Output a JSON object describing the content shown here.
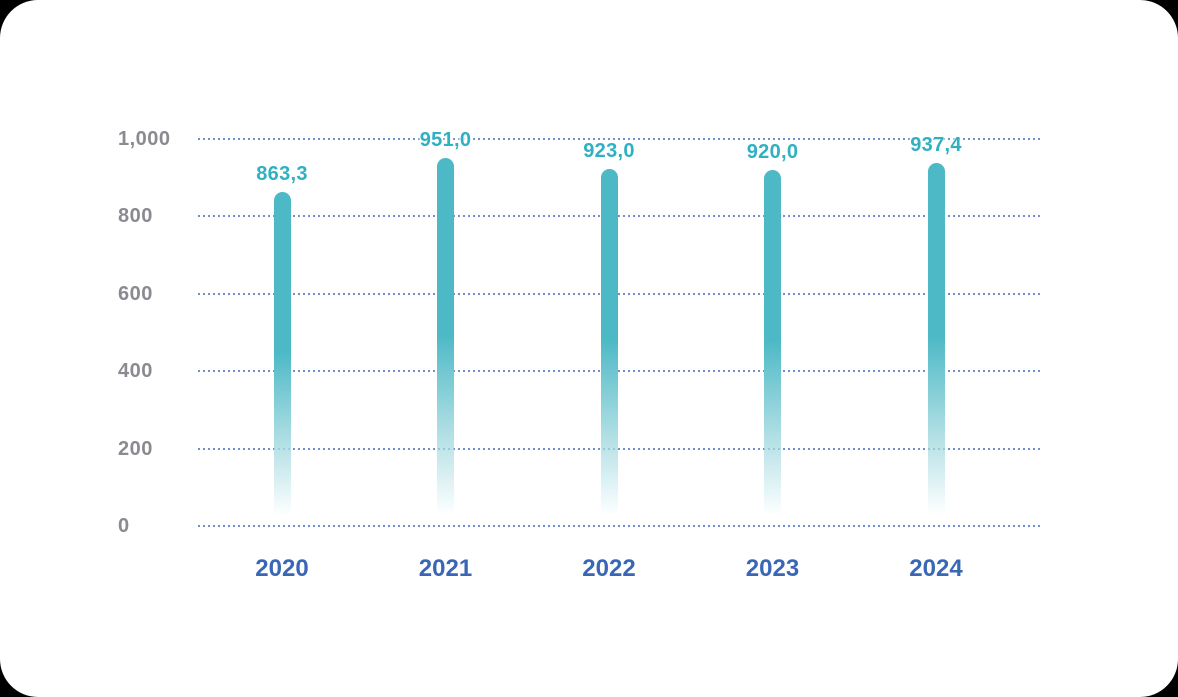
{
  "chart_data": {
    "type": "bar",
    "title": "",
    "xlabel": "",
    "ylabel": "",
    "categories": [
      "2020",
      "2021",
      "2022",
      "2023",
      "2024"
    ],
    "values": [
      863.3,
      951.0,
      923.0,
      920.0,
      937.4
    ],
    "value_labels": [
      "863,3",
      "951,0",
      "923,0",
      "920,0",
      "937,4"
    ],
    "ylim": [
      0,
      1000
    ],
    "yticks": [
      0,
      200,
      400,
      600,
      800,
      1000
    ],
    "ytick_labels": [
      "0",
      "200",
      "400",
      "600",
      "800",
      "1,000"
    ],
    "grid": "horizontal-dotted",
    "legend": "none",
    "colors": {
      "bar": "#4db9c6",
      "bar_fade_mid": "#a6dbe1",
      "value_label": "#2fb0c3",
      "x_tick_label": "#3a67b5",
      "y_tick_label": "#8a8b90",
      "gridline": "#4d74be",
      "card_background": "#ffffff"
    }
  }
}
